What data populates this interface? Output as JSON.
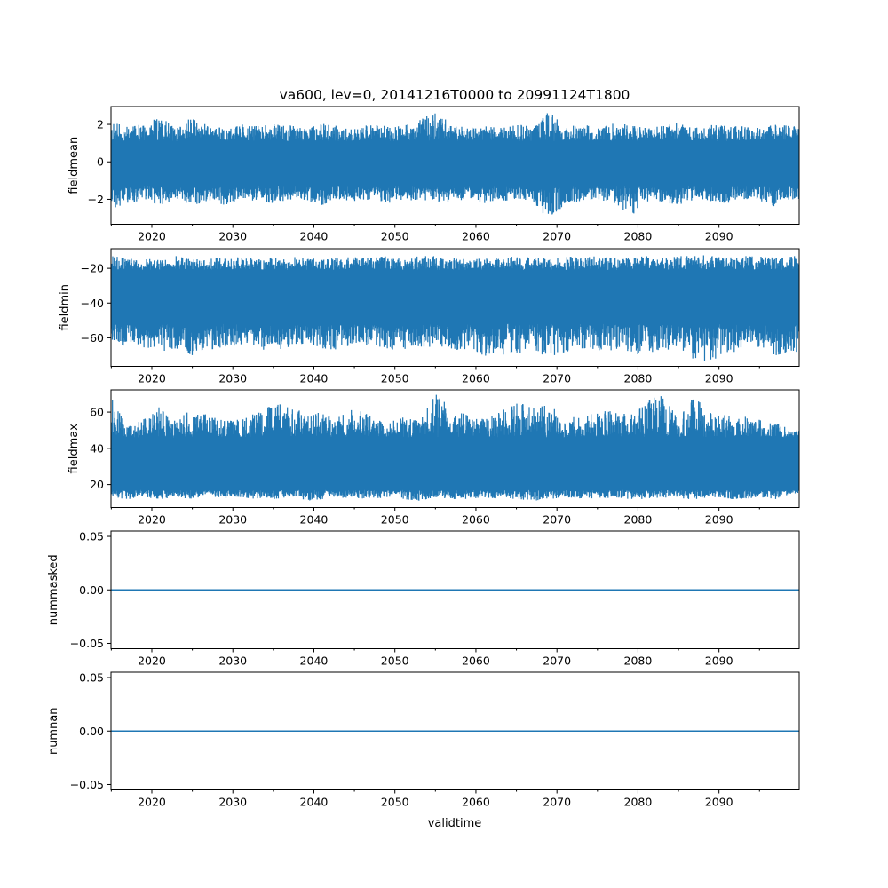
{
  "chart_data": {
    "type": "line",
    "title": "va600, lev=0, 20141216T0000 to 20991124T1800",
    "xlabel": "validtime",
    "xlim": [
      2014.96,
      2099.9
    ],
    "x_ticks": [
      2020,
      2030,
      2040,
      2050,
      2060,
      2070,
      2080,
      2090
    ],
    "x_tick_labels": [
      "2020",
      "2030",
      "2040",
      "2050",
      "2060",
      "2070",
      "2080",
      "2090"
    ],
    "x_minor_ticks": [
      2015,
      2025,
      2035,
      2045,
      2055,
      2065,
      2075,
      2085,
      2095
    ],
    "color": "#1f77b4",
    "bin_years": [
      2015,
      2017,
      2019,
      2021,
      2023,
      2025,
      2027,
      2029,
      2031,
      2033,
      2035,
      2037,
      2039,
      2041,
      2043,
      2045,
      2047,
      2049,
      2051,
      2053,
      2055,
      2057,
      2059,
      2061,
      2063,
      2065,
      2067,
      2069,
      2071,
      2073,
      2075,
      2077,
      2079,
      2081,
      2083,
      2085,
      2087,
      2089,
      2091,
      2093,
      2095,
      2097,
      2099
    ],
    "panels": [
      {
        "ylabel": "fieldmean",
        "ylim": [
          -3.33,
          2.95
        ],
        "y_ticks": [
          -2,
          0,
          2
        ],
        "y_tick_labels": [
          "−2",
          "0",
          "2"
        ],
        "core": [
          -1.3,
          1.1
        ],
        "bin_max": [
          2.1,
          1.9,
          2.0,
          2.4,
          1.8,
          2.4,
          1.9,
          1.8,
          2.0,
          1.9,
          2.0,
          2.0,
          1.8,
          2.1,
          1.9,
          1.8,
          2.0,
          1.9,
          1.9,
          2.2,
          2.7,
          2.0,
          1.8,
          1.9,
          1.8,
          2.0,
          1.9,
          2.7,
          1.9,
          2.0,
          1.9,
          2.1,
          2.0,
          1.8,
          1.9,
          2.1,
          1.8,
          2.0,
          1.9,
          1.9,
          1.8,
          2.0,
          1.9
        ],
        "bin_min": [
          -2.5,
          -2.2,
          -2.1,
          -2.3,
          -2.0,
          -2.3,
          -2.1,
          -2.3,
          -2.0,
          -2.1,
          -2.2,
          -2.0,
          -2.1,
          -2.3,
          -2.0,
          -2.1,
          -2.0,
          -2.2,
          -2.1,
          -2.0,
          -2.2,
          -2.1,
          -2.0,
          -2.2,
          -2.1,
          -2.0,
          -2.1,
          -3.2,
          -2.2,
          -2.1,
          -2.0,
          -2.2,
          -3.0,
          -2.1,
          -2.2,
          -2.3,
          -2.0,
          -2.1,
          -2.2,
          -2.0,
          -2.1,
          -2.4,
          -2.0
        ]
      },
      {
        "ylabel": "fieldmin",
        "ylim": [
          -76.4,
          -8.7
        ],
        "y_ticks": [
          -60,
          -40,
          -20
        ],
        "y_tick_labels": [
          "−60",
          "−40",
          "−20"
        ],
        "core": [
          -52,
          -21
        ],
        "bin_max": [
          -13,
          -14,
          -15,
          -14,
          -13,
          -15,
          -14,
          -14,
          -13,
          -15,
          -14,
          -13,
          -14,
          -15,
          -14,
          -13,
          -14,
          -13,
          -14,
          -13,
          -13,
          -14,
          -15,
          -14,
          -14,
          -13,
          -14,
          -14,
          -13,
          -14,
          -13,
          -14,
          -14,
          -13,
          -14,
          -13,
          -13,
          -12,
          -14,
          -13,
          -13,
          -14,
          -13
        ],
        "bin_min": [
          -63,
          -65,
          -66,
          -68,
          -66,
          -70,
          -67,
          -65,
          -64,
          -66,
          -68,
          -65,
          -63,
          -66,
          -67,
          -65,
          -64,
          -66,
          -68,
          -65,
          -66,
          -67,
          -67,
          -70,
          -73,
          -70,
          -66,
          -72,
          -69,
          -66,
          -68,
          -67,
          -70,
          -69,
          -67,
          -71,
          -72,
          -74,
          -69,
          -67,
          -66,
          -70,
          -68
        ]
      },
      {
        "ylabel": "fieldmax",
        "ylim": [
          7.3,
          72.3
        ],
        "y_ticks": [
          20,
          40,
          60
        ],
        "y_tick_labels": [
          "20",
          "40",
          "60"
        ],
        "core": [
          17,
          46
        ],
        "bin_max": [
          68,
          52,
          56,
          63,
          55,
          62,
          58,
          55,
          56,
          60,
          64,
          65,
          58,
          60,
          57,
          62,
          58,
          54,
          57,
          55,
          70,
          62,
          58,
          56,
          60,
          66,
          62,
          64,
          57,
          58,
          60,
          61,
          58,
          66,
          70,
          56,
          70,
          60,
          58,
          58,
          56,
          55,
          50
        ],
        "bin_min": [
          13,
          12,
          13,
          12,
          13,
          12,
          14,
          12,
          13,
          12,
          12,
          13,
          11,
          12,
          13,
          12,
          12,
          13,
          12,
          11,
          13,
          12,
          12,
          13,
          12,
          12,
          11,
          12,
          13,
          12,
          12,
          13,
          12,
          12,
          13,
          12,
          12,
          13,
          12,
          12,
          13,
          12,
          15
        ]
      },
      {
        "ylabel": "nummasked",
        "ylim": [
          -0.055,
          0.055
        ],
        "y_ticks": [
          -0.05,
          0.0,
          0.05
        ],
        "y_tick_labels": [
          "−0.05",
          "0.00",
          "0.05"
        ],
        "constant": 0
      },
      {
        "ylabel": "numnan",
        "ylim": [
          -0.055,
          0.055
        ],
        "y_ticks": [
          -0.05,
          0.0,
          0.05
        ],
        "y_tick_labels": [
          "−0.05",
          "0.00",
          "0.05"
        ],
        "constant": 0
      }
    ]
  }
}
